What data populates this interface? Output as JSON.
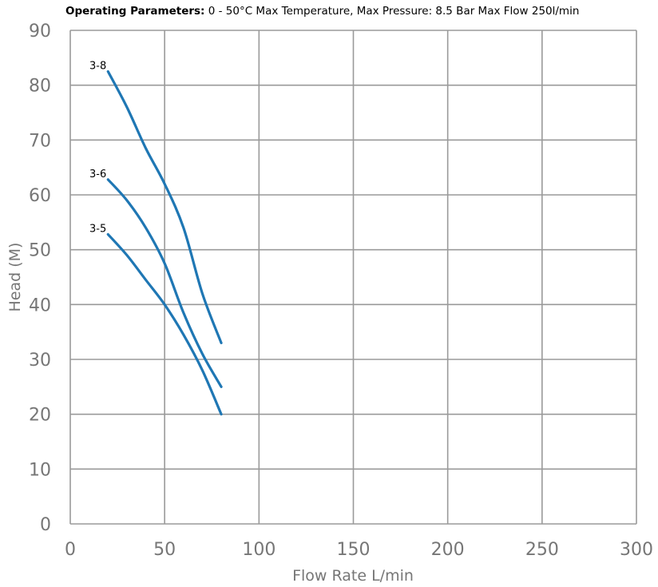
{
  "header": {
    "bold_text": "Operating Parameters:",
    "rest_text": " 0 - 50°C Max Temperature, Max Pressure: 8.5 Bar Max Flow 250l/min"
  },
  "chart_data": {
    "type": "line",
    "title": "",
    "xlabel": "Flow Rate L/min",
    "ylabel": "Head (M)",
    "xlim": [
      0,
      300
    ],
    "ylim": [
      0,
      90
    ],
    "x_ticks": [
      0,
      50,
      100,
      150,
      200,
      250,
      300
    ],
    "y_ticks": [
      0,
      10,
      20,
      30,
      40,
      50,
      60,
      70,
      80,
      90
    ],
    "grid": true,
    "line_color": "#1f77b4",
    "series": [
      {
        "name": "3-8",
        "points": [
          [
            20,
            82.5
          ],
          [
            30,
            76
          ],
          [
            40,
            68.5
          ],
          [
            50,
            62
          ],
          [
            60,
            54
          ],
          [
            70,
            42
          ],
          [
            80,
            33
          ]
        ]
      },
      {
        "name": "3-6",
        "points": [
          [
            20,
            62.8
          ],
          [
            30,
            59
          ],
          [
            40,
            54
          ],
          [
            50,
            47.5
          ],
          [
            60,
            38.5
          ],
          [
            70,
            31
          ],
          [
            80,
            25
          ]
        ]
      },
      {
        "name": "3-5",
        "points": [
          [
            20,
            52.8
          ],
          [
            30,
            49
          ],
          [
            40,
            44.5
          ],
          [
            50,
            40
          ],
          [
            60,
            34.5
          ],
          [
            70,
            28
          ],
          [
            80,
            20
          ]
        ]
      }
    ]
  }
}
